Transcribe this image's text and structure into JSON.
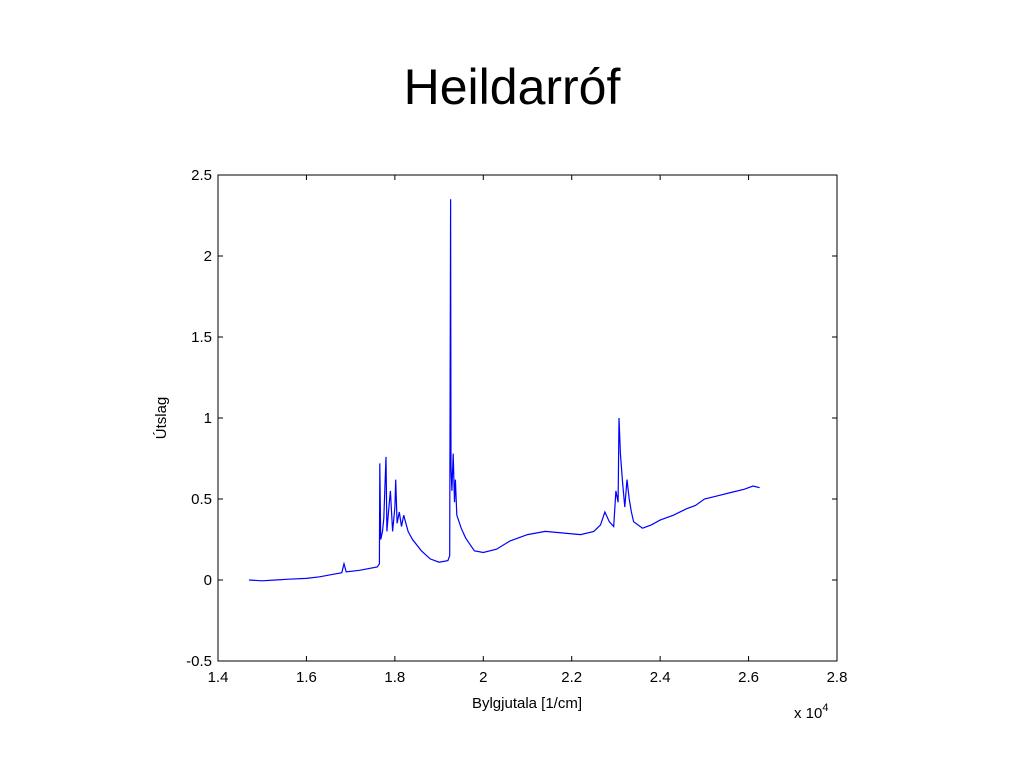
{
  "slide": {
    "title": "Heildarróf"
  },
  "chart_data": {
    "type": "line",
    "xlabel": "Bylgjutala [1/cm]",
    "ylabel": "Útslag",
    "x_multiplier": "x 10",
    "x_multiplier_exponent": "4",
    "xlim": [
      1.4,
      2.8
    ],
    "ylim": [
      -0.5,
      2.5
    ],
    "xticks": [
      1.4,
      1.6,
      1.8,
      2.0,
      2.2,
      2.4,
      2.6,
      2.8
    ],
    "xtick_labels": [
      "1.4",
      "1.6",
      "1.8",
      "2",
      "2.2",
      "2.4",
      "2.6",
      "2.8"
    ],
    "yticks": [
      -0.5,
      0,
      0.5,
      1,
      1.5,
      2,
      2.5
    ],
    "ytick_labels": [
      "-0.5",
      "0",
      "0.5",
      "1",
      "1.5",
      "2",
      "2.5"
    ],
    "grid": false,
    "colors": {
      "series": "#0000ff",
      "axes": "#000000"
    },
    "series": [
      {
        "x": [
          1.47,
          1.5,
          1.53,
          1.56,
          1.6,
          1.63,
          1.66,
          1.68,
          1.685,
          1.69,
          1.72,
          1.76,
          1.765,
          1.766,
          1.768,
          1.772,
          1.775,
          1.78,
          1.782,
          1.785,
          1.79,
          1.795,
          1.8,
          1.802,
          1.805,
          1.81,
          1.815,
          1.82,
          1.83,
          1.84,
          1.86,
          1.88,
          1.9,
          1.92,
          1.924,
          1.926,
          1.927,
          1.929,
          1.932,
          1.935,
          1.937,
          1.94,
          1.95,
          1.96,
          1.97,
          1.98,
          2.0,
          2.03,
          2.06,
          2.1,
          2.14,
          2.18,
          2.22,
          2.25,
          2.265,
          2.275,
          2.285,
          2.295,
          2.3,
          2.305,
          2.307,
          2.31,
          2.315,
          2.32,
          2.325,
          2.33,
          2.335,
          2.34,
          2.36,
          2.38,
          2.4,
          2.43,
          2.46,
          2.48,
          2.5,
          2.53,
          2.56,
          2.59,
          2.61,
          2.625
        ],
        "y": [
          0.0,
          -0.005,
          0.0,
          0.005,
          0.01,
          0.02,
          0.035,
          0.045,
          0.1,
          0.05,
          0.06,
          0.08,
          0.1,
          0.72,
          0.25,
          0.3,
          0.38,
          0.76,
          0.3,
          0.4,
          0.55,
          0.3,
          0.45,
          0.62,
          0.35,
          0.42,
          0.33,
          0.4,
          0.3,
          0.25,
          0.18,
          0.13,
          0.11,
          0.12,
          0.15,
          2.35,
          0.7,
          0.55,
          0.78,
          0.48,
          0.62,
          0.4,
          0.32,
          0.26,
          0.22,
          0.18,
          0.17,
          0.19,
          0.24,
          0.28,
          0.3,
          0.29,
          0.28,
          0.3,
          0.34,
          0.42,
          0.36,
          0.33,
          0.55,
          0.48,
          1.0,
          0.78,
          0.6,
          0.45,
          0.62,
          0.5,
          0.42,
          0.36,
          0.32,
          0.34,
          0.37,
          0.4,
          0.44,
          0.46,
          0.5,
          0.52,
          0.54,
          0.56,
          0.58,
          0.57
        ]
      }
    ]
  }
}
